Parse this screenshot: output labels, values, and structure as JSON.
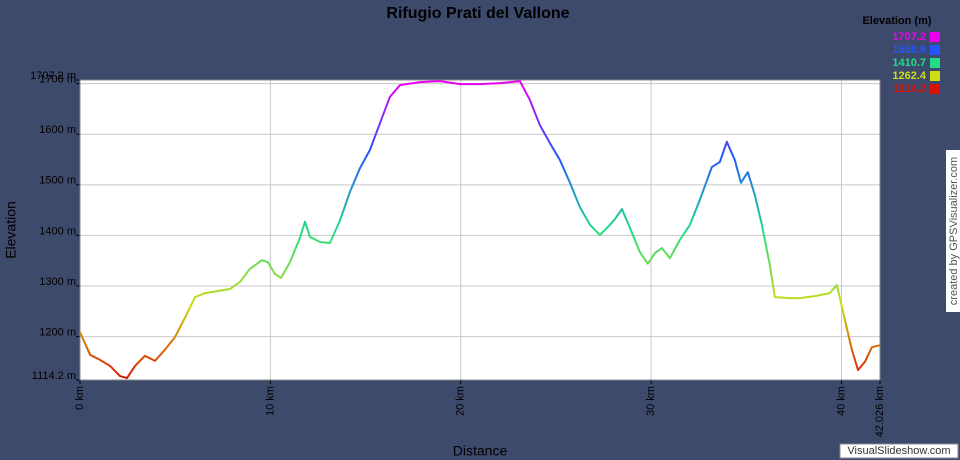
{
  "chart_data": {
    "type": "line",
    "title": "Rifugio Prati del Vallone",
    "x_label": "Distance",
    "y_label": "Elevation",
    "x": [
      0,
      0.53,
      1.05,
      1.58,
      2.1,
      2.47,
      2.89,
      3.41,
      3.94,
      4.46,
      4.99,
      5.51,
      6.04,
      6.57,
      7.88,
      8.4,
      8.93,
      9.56,
      9.87,
      10.24,
      10.56,
      11.03,
      11.55,
      11.82,
      12.08,
      12.61,
      13.13,
      13.66,
      14.18,
      14.71,
      15.23,
      15.76,
      16.28,
      16.81,
      17.86,
      18.91,
      19.96,
      21.01,
      22.06,
      23.11,
      23.63,
      24.16,
      24.68,
      25.21,
      25.74,
      26.26,
      26.79,
      27.31,
      27.84,
      28.1,
      28.47,
      28.89,
      29.41,
      29.83,
      30.2,
      30.57,
      30.99,
      31.51,
      32.04,
      32.56,
      33.19,
      33.61,
      33.98,
      34.4,
      34.72,
      35.08,
      35.45,
      35.82,
      36.24,
      36.5,
      37.29,
      37.82,
      38.6,
      39.39,
      39.76,
      40.18,
      40.55,
      40.87,
      41.23,
      41.6,
      42.026
    ],
    "series": [
      {
        "name": "Elevation (m)",
        "values": [
          1209,
          1164,
          1154,
          1142,
          1122,
          1118,
          1142,
          1162,
          1152,
          1174,
          1199,
          1237,
          1278,
          1286,
          1294,
          1308,
          1334,
          1351,
          1347,
          1324,
          1316,
          1347,
          1395,
          1427,
          1397,
          1387,
          1385,
          1430,
          1486,
          1533,
          1569,
          1622,
          1674,
          1697,
          1703,
          1705,
          1699,
          1699,
          1701,
          1705,
          1668,
          1618,
          1583,
          1549,
          1504,
          1456,
          1421,
          1401,
          1421,
          1432,
          1452,
          1415,
          1367,
          1344,
          1365,
          1375,
          1355,
          1391,
          1421,
          1470,
          1535,
          1545,
          1585,
          1549,
          1504,
          1525,
          1480,
          1421,
          1341,
          1278,
          1276,
          1276,
          1280,
          1286,
          1302,
          1233,
          1174,
          1134,
          1150,
          1179,
          1183
        ]
      }
    ],
    "xlim": [
      0,
      42.026
    ],
    "ylim": [
      1114.2,
      1707.2
    ],
    "xticks": [
      {
        "value": 0,
        "label": "0 km"
      },
      {
        "value": 10,
        "label": "10 km"
      },
      {
        "value": 20,
        "label": "20 km"
      },
      {
        "value": 30,
        "label": "30 km"
      },
      {
        "value": 40,
        "label": "40 km"
      },
      {
        "value": 42.026,
        "label": "42.026 km"
      }
    ],
    "yticks": [
      {
        "value": 1114.2,
        "label": "1114.2 m"
      },
      {
        "value": 1200,
        "label": "1200 m"
      },
      {
        "value": 1300,
        "label": "1300 m"
      },
      {
        "value": 1400,
        "label": "1400 m"
      },
      {
        "value": 1500,
        "label": "1500 m"
      },
      {
        "value": 1600,
        "label": "1600 m"
      },
      {
        "value": 1700,
        "label": "1700 m"
      },
      {
        "value": 1707.2,
        "label": "1707.2 m"
      }
    ],
    "grid": true,
    "legend": {
      "title": "Elevation (m)",
      "position": "top-right",
      "entries": [
        {
          "value": 1707.2,
          "color": "#ee00ee"
        },
        {
          "value": 1558.9,
          "color": "#2255ff"
        },
        {
          "value": 1410.7,
          "color": "#22dd88"
        },
        {
          "value": 1262.4,
          "color": "#ccdd11"
        },
        {
          "value": 1114.2,
          "color": "#dd1100"
        }
      ]
    },
    "annotations": [
      "created by GPSVisualizer.com",
      "VisualSlideshow.com"
    ]
  }
}
